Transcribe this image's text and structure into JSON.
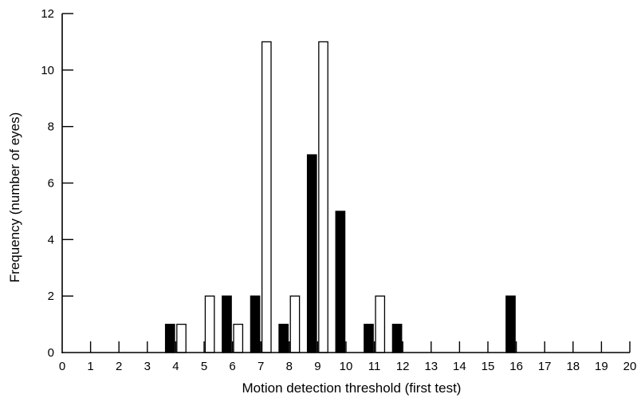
{
  "chart_data": {
    "type": "bar",
    "xlabel": "Motion detection threshold (first test)",
    "ylabel": "Frequency (number of eyes)",
    "xlim": [
      0,
      20
    ],
    "ylim": [
      0,
      12
    ],
    "xticks": [
      "0",
      "1",
      "2",
      "3",
      "4",
      "5",
      "6",
      "7",
      "8",
      "9",
      "10",
      "11",
      "12",
      "13",
      "14",
      "15",
      "16",
      "17",
      "18",
      "19",
      "20"
    ],
    "yticks": [
      "0",
      "2",
      "4",
      "6",
      "8",
      "10",
      "12"
    ],
    "grid": false,
    "legend": "none",
    "series": [
      {
        "fill": "#000000",
        "points": [
          {
            "x": 3.8,
            "y": 1
          },
          {
            "x": 5.8,
            "y": 2
          },
          {
            "x": 6.8,
            "y": 2
          },
          {
            "x": 7.8,
            "y": 1
          },
          {
            "x": 8.8,
            "y": 7
          },
          {
            "x": 9.8,
            "y": 5
          },
          {
            "x": 10.8,
            "y": 1
          },
          {
            "x": 11.8,
            "y": 1
          },
          {
            "x": 15.8,
            "y": 2
          }
        ]
      },
      {
        "fill": "#ffffff",
        "points": [
          {
            "x": 4.2,
            "y": 1
          },
          {
            "x": 5.2,
            "y": 2
          },
          {
            "x": 6.2,
            "y": 1
          },
          {
            "x": 7.2,
            "y": 11
          },
          {
            "x": 8.2,
            "y": 2
          },
          {
            "x": 9.2,
            "y": 11
          },
          {
            "x": 11.2,
            "y": 2
          }
        ]
      }
    ]
  }
}
